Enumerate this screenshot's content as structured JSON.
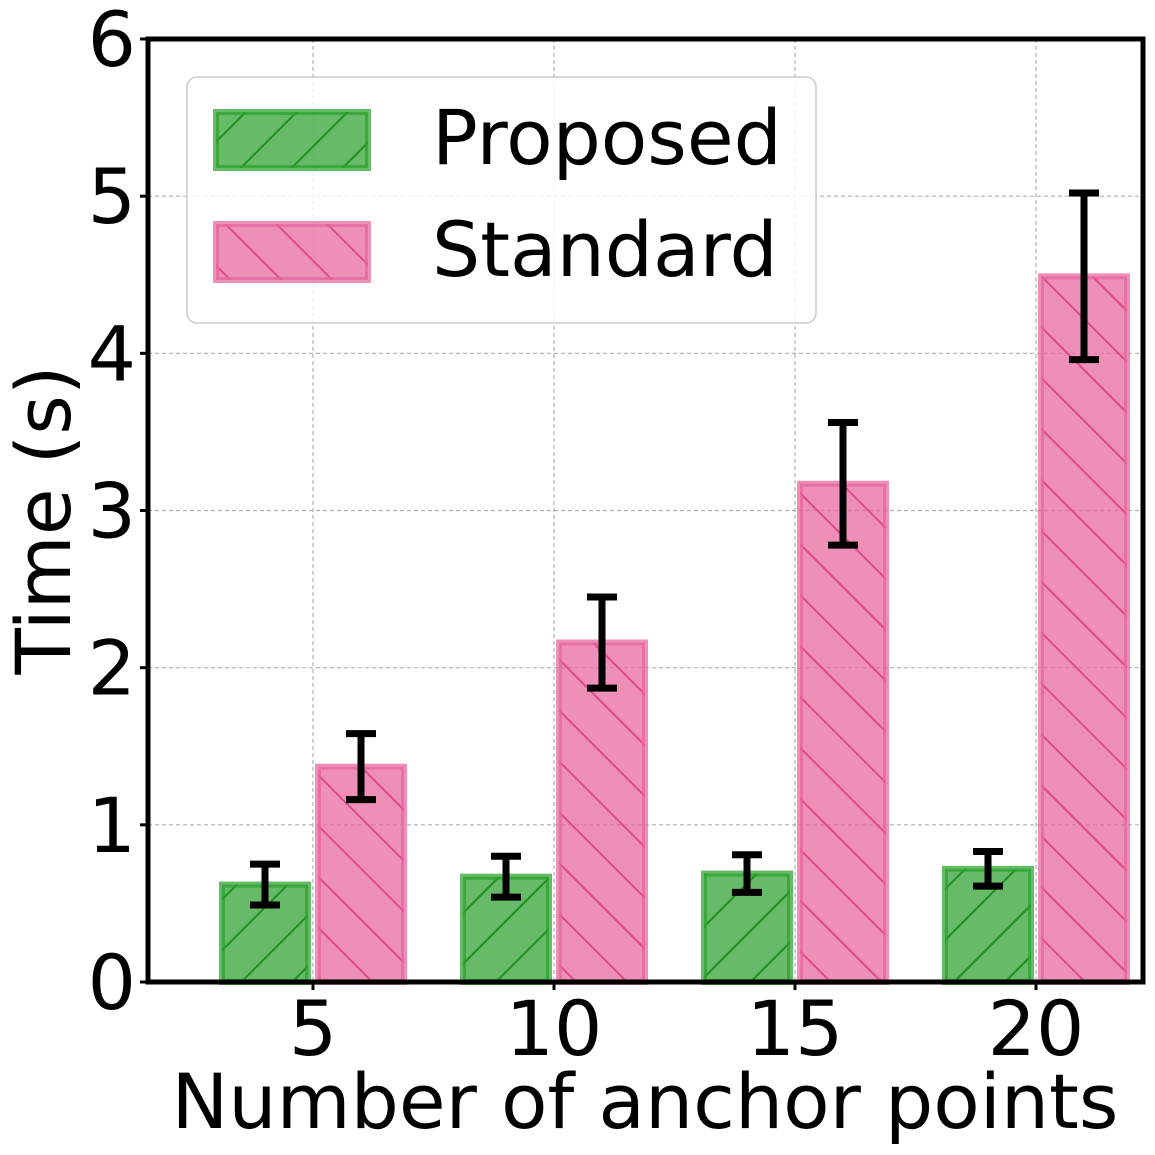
{
  "chart_data": {
    "type": "bar",
    "title": "",
    "xlabel": "Number of anchor points",
    "ylabel": "Time (s)",
    "categories": [
      "5",
      "10",
      "15",
      "20"
    ],
    "ylim": [
      0,
      6
    ],
    "yticks": [
      "0",
      "1",
      "2",
      "3",
      "4",
      "5",
      "6"
    ],
    "grid": true,
    "legend_position": "top-left",
    "series": [
      {
        "name": "Proposed",
        "color": "#2ca02c",
        "edge_color": "#1f8f1f",
        "hatch": "forward-diagonal",
        "values": [
          0.62,
          0.67,
          0.69,
          0.72
        ],
        "error": [
          0.13,
          0.13,
          0.12,
          0.11
        ]
      },
      {
        "name": "Standard",
        "color": "#e7649c",
        "edge_color": "#dd4a8a",
        "hatch": "backward-diagonal",
        "values": [
          1.37,
          2.16,
          3.17,
          4.49
        ],
        "error": [
          0.21,
          0.29,
          0.39,
          0.53
        ]
      }
    ]
  }
}
